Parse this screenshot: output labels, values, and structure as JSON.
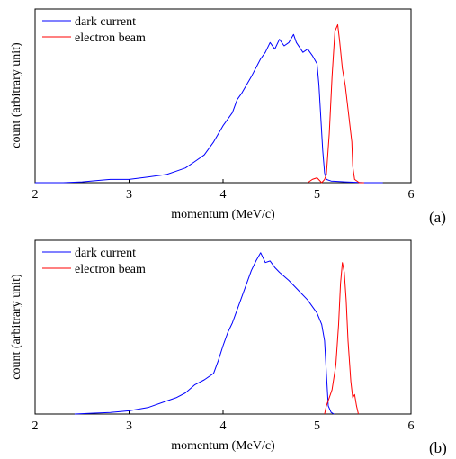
{
  "chart_data": [
    {
      "type": "line",
      "panel_label": "(a)",
      "xlabel": "momentum (MeV/c)",
      "ylabel": "count (arbitrary unit)",
      "xlim": [
        2,
        6
      ],
      "ylim": [
        0,
        1
      ],
      "x_ticks": [
        "2",
        "3",
        "4",
        "5",
        "6"
      ],
      "legend_position": "top-left",
      "series": [
        {
          "name": "dark current",
          "color": "#0000ff",
          "x": [
            2.0,
            2.3,
            2.5,
            2.7,
            2.8,
            3.0,
            3.2,
            3.4,
            3.5,
            3.6,
            3.7,
            3.8,
            3.9,
            4.0,
            4.1,
            4.15,
            4.2,
            4.3,
            4.4,
            4.45,
            4.5,
            4.55,
            4.6,
            4.65,
            4.7,
            4.75,
            4.78,
            4.85,
            4.9,
            4.95,
            5.0,
            5.02,
            5.04,
            5.06,
            5.08,
            5.1,
            5.15,
            5.3,
            5.5,
            5.7
          ],
          "y": [
            0.0,
            0.0,
            0.005,
            0.015,
            0.02,
            0.02,
            0.035,
            0.05,
            0.07,
            0.09,
            0.13,
            0.17,
            0.25,
            0.35,
            0.43,
            0.51,
            0.55,
            0.65,
            0.76,
            0.8,
            0.86,
            0.82,
            0.88,
            0.84,
            0.86,
            0.91,
            0.86,
            0.8,
            0.82,
            0.78,
            0.73,
            0.6,
            0.4,
            0.2,
            0.06,
            0.02,
            0.01,
            0.005,
            0.0,
            0.0
          ]
        },
        {
          "name": "electron beam",
          "color": "#ff0000",
          "x": [
            4.9,
            4.95,
            5.0,
            5.05,
            5.08,
            5.1,
            5.13,
            5.16,
            5.19,
            5.22,
            5.24,
            5.27,
            5.3,
            5.33,
            5.37,
            5.38,
            5.4,
            5.45,
            5.5
          ],
          "y": [
            0.0,
            0.02,
            0.03,
            0.0,
            0.02,
            0.05,
            0.3,
            0.65,
            0.93,
            0.97,
            0.87,
            0.7,
            0.6,
            0.45,
            0.25,
            0.1,
            0.02,
            0.0,
            0.0
          ]
        }
      ]
    },
    {
      "type": "line",
      "panel_label": "(b)",
      "xlabel": "momentum (MeV/c)",
      "ylabel": "count (arbitrary unit)",
      "xlim": [
        2,
        6
      ],
      "ylim": [
        0,
        1
      ],
      "x_ticks": [
        "2",
        "3",
        "4",
        "5",
        "6"
      ],
      "legend_position": "top-left",
      "series": [
        {
          "name": "dark current",
          "color": "#0000ff",
          "x": [
            2.42,
            2.6,
            2.8,
            3.0,
            3.2,
            3.4,
            3.5,
            3.6,
            3.7,
            3.8,
            3.9,
            3.95,
            4.0,
            4.05,
            4.1,
            4.2,
            4.3,
            4.35,
            4.4,
            4.45,
            4.5,
            4.55,
            4.6,
            4.7,
            4.8,
            4.9,
            5.0,
            5.05,
            5.08,
            5.1,
            5.12,
            5.15,
            5.18
          ],
          "y": [
            0.0,
            0.005,
            0.01,
            0.02,
            0.04,
            0.08,
            0.1,
            0.13,
            0.18,
            0.21,
            0.25,
            0.33,
            0.42,
            0.5,
            0.56,
            0.72,
            0.88,
            0.94,
            0.99,
            0.93,
            0.94,
            0.9,
            0.87,
            0.82,
            0.76,
            0.7,
            0.62,
            0.55,
            0.45,
            0.25,
            0.05,
            0.01,
            0.0
          ]
        },
        {
          "name": "electron beam",
          "color": "#ff0000",
          "x": [
            5.08,
            5.1,
            5.13,
            5.16,
            5.2,
            5.23,
            5.25,
            5.27,
            5.29,
            5.31,
            5.33,
            5.36,
            5.38,
            5.4,
            5.42,
            5.44
          ],
          "y": [
            0.0,
            0.05,
            0.1,
            0.15,
            0.3,
            0.55,
            0.8,
            0.93,
            0.87,
            0.7,
            0.45,
            0.2,
            0.1,
            0.12,
            0.05,
            0.0
          ]
        }
      ]
    }
  ]
}
